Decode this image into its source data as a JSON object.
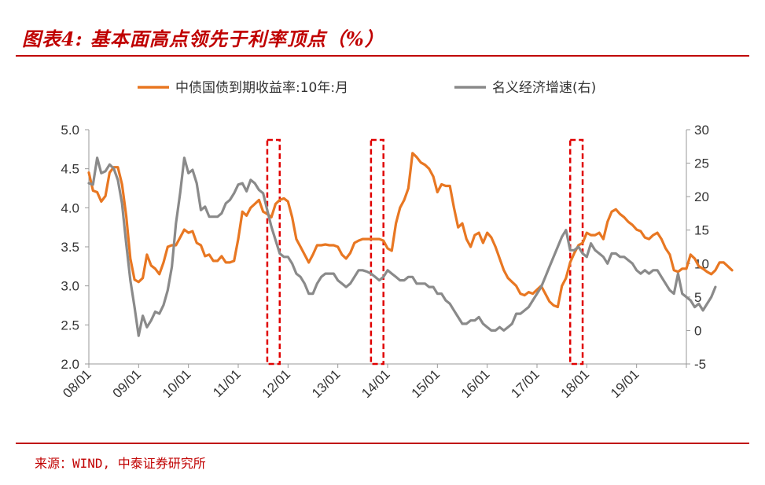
{
  "header": {
    "title": "图表4: 基本面高点领先于利率顶点（%）"
  },
  "footer": {
    "source": "来源：WIND, 中泰证券研究所"
  },
  "chart_data": {
    "type": "line",
    "title": "图表4: 基本面高点领先于利率顶点（%）",
    "x_ticks": [
      "08/01",
      "09/01",
      "10/01",
      "11/01",
      "12/01",
      "13/01",
      "14/01",
      "15/01",
      "16/01",
      "17/01",
      "18/01",
      "19/01"
    ],
    "x_start": "2008-01",
    "y_left": {
      "range": [
        2.0,
        5.0
      ],
      "ticks": [
        "2.0",
        "2.5",
        "3.0",
        "3.5",
        "4.0",
        "4.5",
        "5.0"
      ]
    },
    "y_right": {
      "range": [
        -5,
        30
      ],
      "ticks": [
        "-5",
        "0",
        "5",
        "10",
        "15",
        "20",
        "25",
        "30"
      ]
    },
    "legend_position": "top",
    "series": [
      {
        "name": "中债国债到期收益率:10年:月",
        "axis": "left",
        "color": "#E87722",
        "values": [
          4.45,
          4.22,
          4.2,
          4.08,
          4.15,
          4.45,
          4.52,
          4.52,
          4.3,
          3.9,
          3.35,
          3.08,
          3.05,
          3.1,
          3.4,
          3.26,
          3.22,
          3.15,
          3.3,
          3.5,
          3.52,
          3.52,
          3.62,
          3.72,
          3.68,
          3.7,
          3.55,
          3.52,
          3.38,
          3.4,
          3.32,
          3.32,
          3.38,
          3.3,
          3.3,
          3.32,
          3.6,
          3.95,
          3.9,
          4.0,
          4.05,
          4.1,
          3.95,
          3.92,
          3.88,
          4.05,
          4.1,
          4.12,
          4.08,
          3.88,
          3.6,
          3.5,
          3.4,
          3.3,
          3.4,
          3.52,
          3.52,
          3.53,
          3.52,
          3.52,
          3.5,
          3.4,
          3.35,
          3.42,
          3.55,
          3.58,
          3.6,
          3.6,
          3.6,
          3.6,
          3.6,
          3.58,
          3.48,
          3.45,
          3.8,
          4.0,
          4.1,
          4.25,
          4.7,
          4.65,
          4.58,
          4.55,
          4.5,
          4.4,
          4.2,
          4.3,
          4.28,
          4.28,
          4.0,
          3.75,
          3.8,
          3.6,
          3.5,
          3.65,
          3.68,
          3.55,
          3.68,
          3.62,
          3.5,
          3.35,
          3.2,
          3.1,
          3.05,
          3.0,
          2.9,
          2.88,
          2.92,
          2.9,
          2.95,
          3.0,
          2.9,
          2.8,
          2.75,
          2.73,
          3.0,
          3.1,
          3.3,
          3.42,
          3.52,
          3.55,
          3.68,
          3.65,
          3.65,
          3.68,
          3.6,
          3.82,
          3.95,
          3.98,
          3.92,
          3.88,
          3.82,
          3.78,
          3.72,
          3.7,
          3.62,
          3.6,
          3.65,
          3.68,
          3.6,
          3.48,
          3.4,
          3.2,
          3.18,
          3.22,
          3.22,
          3.4,
          3.35,
          3.25,
          3.22,
          3.18,
          3.15,
          3.2,
          3.3,
          3.3,
          3.25,
          3.2
        ]
      },
      {
        "name": "名义经济增速(右)",
        "axis": "right",
        "color": "#8A8A8A",
        "values": [
          22.0,
          21.8,
          25.8,
          23.5,
          23.8,
          24.8,
          24.2,
          22.5,
          19.0,
          13.0,
          7.5,
          3.5,
          -0.8,
          2.2,
          0.5,
          1.5,
          2.8,
          2.5,
          3.8,
          6.0,
          9.5,
          16.0,
          20.5,
          25.8,
          23.5,
          24.0,
          22.0,
          18.0,
          18.5,
          17.0,
          17.0,
          17.0,
          17.5,
          19.0,
          19.5,
          20.5,
          21.8,
          22.0,
          20.8,
          22.5,
          22.0,
          21.0,
          20.5,
          18.0,
          15.5,
          13.5,
          11.5,
          11.0,
          11.0,
          10.0,
          8.5,
          8.0,
          7.0,
          5.5,
          5.5,
          7.0,
          8.0,
          8.5,
          8.5,
          8.5,
          7.5,
          7.0,
          6.5,
          7.0,
          8.0,
          9.0,
          9.0,
          8.8,
          8.5,
          8.0,
          7.5,
          8.0,
          9.0,
          8.5,
          8.0,
          7.5,
          7.5,
          8.0,
          8.0,
          7.0,
          7.0,
          7.0,
          6.5,
          6.5,
          5.5,
          5.5,
          4.5,
          4.0,
          3.0,
          2.0,
          1.0,
          1.0,
          1.5,
          1.5,
          2.0,
          1.0,
          0.5,
          0.0,
          0.0,
          0.5,
          0.0,
          0.5,
          1.0,
          2.5,
          2.5,
          3.0,
          3.5,
          4.5,
          5.5,
          6.5,
          8.0,
          9.5,
          11.0,
          12.5,
          14.0,
          15.0,
          12.0,
          12.0,
          12.5,
          11.5,
          11.0,
          13.0,
          12.0,
          11.5,
          11.0,
          10.0,
          11.5,
          11.5,
          11.0,
          11.0,
          10.5,
          10.0,
          9.0,
          8.5,
          9.0,
          8.5,
          9.0,
          9.0,
          8.0,
          7.0,
          6.0,
          5.5,
          8.5,
          5.5,
          5.0,
          4.5,
          3.5,
          4.0,
          3.0,
          4.0,
          5.0,
          6.5
        ]
      }
    ],
    "highlight_boxes": [
      [
        "2011-08",
        "2011-11"
      ],
      [
        "2013-09",
        "2013-12"
      ],
      [
        "2017-09",
        "2017-12"
      ]
    ]
  }
}
